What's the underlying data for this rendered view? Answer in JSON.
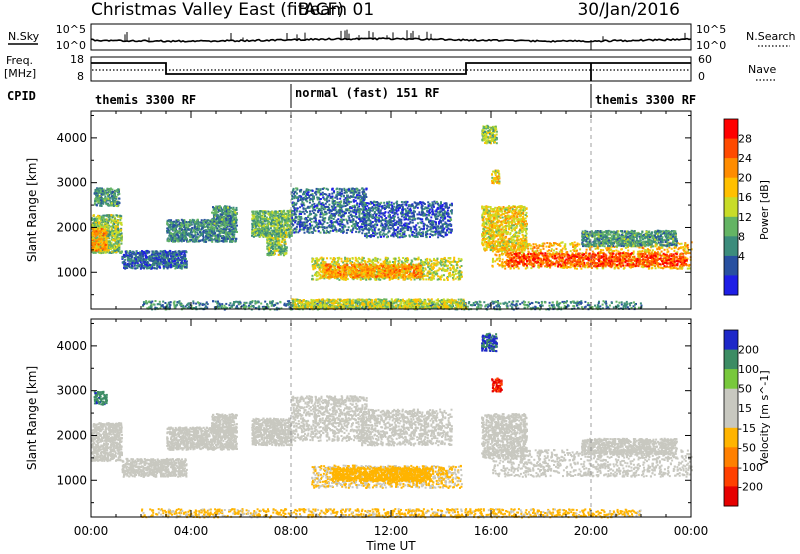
{
  "header": {
    "station": "Christmas Valley East (fitACF)",
    "beam": "Beam 01",
    "date": "30/Jan/2016"
  },
  "top_panels": {
    "nsky_label": "N.Sky",
    "nsearch_label": "N.Search",
    "log_ticks": [
      "10^5",
      "10^0"
    ],
    "freq_label_1": "Freq.",
    "freq_label_2": "[MHz]",
    "freq_ticks": [
      "18",
      "8"
    ],
    "nave_ticks": [
      "60",
      "0"
    ],
    "nave_label": "Nave",
    "cpid_label": "CPID",
    "cpid_segments": [
      {
        "label": "themis 3300 RF",
        "start_h": 0,
        "end_h": 8
      },
      {
        "label": "normal (fast) 151 RF",
        "start_h": 8,
        "end_h": 20
      },
      {
        "label": "themis 3300 RF",
        "start_h": 20,
        "end_h": 24
      }
    ]
  },
  "x_axis": {
    "label": "Time UT",
    "ticks": [
      "00:00",
      "04:00",
      "08:00",
      "12:00",
      "16:00",
      "20:00",
      "00:00"
    ]
  },
  "chart_data": [
    {
      "type": "heatmap",
      "title": "",
      "xlabel": "Time UT",
      "ylabel": "Slant Range [km]",
      "xlim_hours": [
        0,
        24
      ],
      "ylim": [
        180,
        4600
      ],
      "y_ticks": [
        "1000",
        "2000",
        "3000",
        "4000"
      ],
      "colorbar_label": "Power [dB]",
      "colorbar_ticks": [
        "28",
        "24",
        "20",
        "16",
        "12",
        "8",
        "4"
      ],
      "colorbar_colors": [
        "#ff0000",
        "#ff4a00",
        "#ff8c00",
        "#ffc000",
        "#c8dc28",
        "#64b464",
        "#3c8c7c",
        "#2850a0",
        "#1e1ee6"
      ],
      "color_range": [
        0,
        32
      ],
      "bands": [
        {
          "x": [
            0.0,
            1.2
          ],
          "y": [
            1450,
            2300
          ],
          "value": 14
        },
        {
          "x": [
            0.0,
            0.6
          ],
          "y": [
            1500,
            2000
          ],
          "value": 22
        },
        {
          "x": [
            0.1,
            1.1
          ],
          "y": [
            2500,
            2900
          ],
          "value": 10
        },
        {
          "x": [
            1.2,
            3.8
          ],
          "y": [
            1100,
            1500
          ],
          "value": 6
        },
        {
          "x": [
            3.0,
            5.8
          ],
          "y": [
            1700,
            2200
          ],
          "value": 9
        },
        {
          "x": [
            4.8,
            5.8
          ],
          "y": [
            2100,
            2500
          ],
          "value": 10
        },
        {
          "x": [
            6.4,
            8.0
          ],
          "y": [
            1800,
            2400
          ],
          "value": 12
        },
        {
          "x": [
            7.0,
            7.8
          ],
          "y": [
            1400,
            1900
          ],
          "value": 14
        },
        {
          "x": [
            8.0,
            11.0
          ],
          "y": [
            1900,
            2900
          ],
          "value": 7
        },
        {
          "x": [
            10.8,
            14.4
          ],
          "y": [
            1800,
            2600
          ],
          "value": 6
        },
        {
          "x": [
            8.8,
            14.8
          ],
          "y": [
            850,
            1350
          ],
          "value": 16
        },
        {
          "x": [
            9.2,
            13.2
          ],
          "y": [
            900,
            1200
          ],
          "value": 22
        },
        {
          "x": [
            15.6,
            17.4
          ],
          "y": [
            1500,
            2500
          ],
          "value": 18
        },
        {
          "x": [
            16.0,
            24.0
          ],
          "y": [
            1100,
            1700
          ],
          "value": 20
        },
        {
          "x": [
            16.6,
            23.8
          ],
          "y": [
            1150,
            1450
          ],
          "value": 27
        },
        {
          "x": [
            19.6,
            23.4
          ],
          "y": [
            1600,
            1950
          ],
          "value": 10
        },
        {
          "x": [
            15.6,
            16.2
          ],
          "y": [
            3900,
            4300
          ],
          "value": 14
        },
        {
          "x": [
            16.0,
            16.3
          ],
          "y": [
            3000,
            3300
          ],
          "value": 18
        },
        {
          "x": [
            2.0,
            22.0
          ],
          "y": [
            190,
            380
          ],
          "value": 9
        },
        {
          "x": [
            8.0,
            15.0
          ],
          "y": [
            200,
            420
          ],
          "value": 16
        }
      ]
    },
    {
      "type": "heatmap",
      "title": "",
      "xlabel": "Time UT",
      "ylabel": "Slant Range [km]",
      "xlim_hours": [
        0,
        24
      ],
      "ylim": [
        180,
        4600
      ],
      "y_ticks": [
        "1000",
        "2000",
        "3000",
        "4000"
      ],
      "colorbar_label": "Velocity [m s^-1]",
      "colorbar_ticks": [
        "200",
        "100",
        "50",
        "15",
        "-15",
        "-50",
        "-100",
        "-200"
      ],
      "colorbar_colors": [
        "#1e28c8",
        "#3c8c64",
        "#78c83c",
        "#c8c8c0",
        "#c8c8c0",
        "#ffb400",
        "#ff8000",
        "#ff4000",
        "#e60000"
      ],
      "color_range": [
        -250,
        250
      ],
      "bands": [
        {
          "x": [
            0.0,
            1.2
          ],
          "y": [
            1450,
            2300
          ],
          "value": 0
        },
        {
          "x": [
            0.1,
            0.6
          ],
          "y": [
            2700,
            3000
          ],
          "value": 180
        },
        {
          "x": [
            1.2,
            3.8
          ],
          "y": [
            1100,
            1500
          ],
          "value": 40
        },
        {
          "x": [
            3.0,
            5.8
          ],
          "y": [
            1700,
            2200
          ],
          "value": 5
        },
        {
          "x": [
            4.8,
            5.8
          ],
          "y": [
            2100,
            2500
          ],
          "value": 0
        },
        {
          "x": [
            6.4,
            8.0
          ],
          "y": [
            1800,
            2400
          ],
          "value": 30
        },
        {
          "x": [
            8.0,
            11.0
          ],
          "y": [
            1900,
            2900
          ],
          "value": 5
        },
        {
          "x": [
            10.8,
            14.4
          ],
          "y": [
            1800,
            2600
          ],
          "value": 0
        },
        {
          "x": [
            8.8,
            14.8
          ],
          "y": [
            850,
            1350
          ],
          "value": -30
        },
        {
          "x": [
            9.6,
            13.6
          ],
          "y": [
            1000,
            1300
          ],
          "value": -60
        },
        {
          "x": [
            15.6,
            17.4
          ],
          "y": [
            1500,
            2500
          ],
          "value": 0
        },
        {
          "x": [
            16.0,
            24.0
          ],
          "y": [
            1100,
            1700
          ],
          "value": 0
        },
        {
          "x": [
            19.6,
            23.4
          ],
          "y": [
            1600,
            1950
          ],
          "value": 0
        },
        {
          "x": [
            15.6,
            16.2
          ],
          "y": [
            3900,
            4300
          ],
          "value": 200
        },
        {
          "x": [
            16.0,
            16.4
          ],
          "y": [
            3000,
            3300
          ],
          "value": -200
        },
        {
          "x": [
            2.0,
            22.0
          ],
          "y": [
            190,
            380
          ],
          "value": -40
        }
      ]
    }
  ]
}
